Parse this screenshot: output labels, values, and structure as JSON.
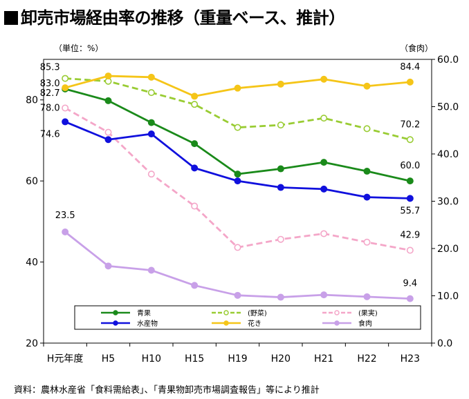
{
  "title": "■卸売市場経由率の推移（重量ベース、推計）",
  "title_text": "卸売市場経由率の推移（重量ベース、推計）",
  "source": "資料：農林水産省「食料需給表」、「青果物卸売市場調査報告」等により推計",
  "chart_data": {
    "type": "line",
    "title": "卸売市場経由率の推移（重量ベース、推計）",
    "categories": [
      "H元年度",
      "H5",
      "H10",
      "H15",
      "H19",
      "H20",
      "H21",
      "H22",
      "H23"
    ],
    "left_axis": {
      "unit": "（単位：%）",
      "ylim": [
        20,
        90
      ],
      "ticks": [
        "20",
        "40",
        "60",
        "80"
      ]
    },
    "right_axis": {
      "unit": "（食肉）",
      "ylim": [
        0,
        60
      ],
      "ticks": [
        "0.0",
        "10.0",
        "20.0",
        "30.0",
        "40.0",
        "50.0",
        "60.0"
      ]
    },
    "grid": false,
    "legend_position": "bottom-inside",
    "series": [
      {
        "name": "青果",
        "axis": "left",
        "color": "#1a8a1a",
        "style": "solid",
        "marker": "filled",
        "values": [
          82.7,
          79.8,
          74.4,
          69.2,
          61.7,
          63.0,
          64.6,
          62.4,
          60.0
        ]
      },
      {
        "name": "(野菜)",
        "axis": "left",
        "color": "#99cc33",
        "style": "dashed",
        "marker": "hollow",
        "values": [
          85.3,
          84.6,
          81.8,
          78.9,
          73.2,
          73.8,
          75.5,
          72.9,
          70.2
        ]
      },
      {
        "name": "(果実)",
        "axis": "left",
        "color": "#f4a6c8",
        "style": "dashed",
        "marker": "hollow",
        "values": [
          78.0,
          72.0,
          61.7,
          53.8,
          43.6,
          45.6,
          47.0,
          44.9,
          42.9
        ]
      },
      {
        "name": "水産物",
        "axis": "left",
        "color": "#1010dd",
        "style": "solid",
        "marker": "filled",
        "values": [
          74.6,
          70.2,
          71.6,
          63.2,
          60.0,
          58.4,
          58.0,
          56.0,
          55.7
        ]
      },
      {
        "name": "花き",
        "axis": "left",
        "color": "#f5c518",
        "style": "solid",
        "marker": "filled",
        "values": [
          83.0,
          85.9,
          85.6,
          80.9,
          82.9,
          83.9,
          85.1,
          83.4,
          84.4
        ]
      },
      {
        "name": "食肉",
        "axis": "right",
        "color": "#c8a0e8",
        "style": "solid",
        "marker": "filled",
        "values": [
          23.5,
          16.3,
          15.4,
          12.2,
          10.1,
          9.7,
          10.2,
          9.8,
          9.4
        ]
      }
    ],
    "data_labels": [
      {
        "series": 1,
        "index": 0,
        "text": "85.3"
      },
      {
        "series": 4,
        "index": 0,
        "text": "83.0"
      },
      {
        "series": 0,
        "index": 0,
        "text": "82.7"
      },
      {
        "series": 2,
        "index": 0,
        "text": "78.0"
      },
      {
        "series": 3,
        "index": 0,
        "text": "74.6"
      },
      {
        "series": 5,
        "index": 0,
        "text": "23.5"
      },
      {
        "series": 4,
        "index": 8,
        "text": "84.4"
      },
      {
        "series": 1,
        "index": 8,
        "text": "70.2"
      },
      {
        "series": 0,
        "index": 8,
        "text": "60.0"
      },
      {
        "series": 3,
        "index": 8,
        "text": "55.7"
      },
      {
        "series": 2,
        "index": 8,
        "text": "42.9"
      },
      {
        "series": 5,
        "index": 8,
        "text": "9.4"
      }
    ]
  }
}
